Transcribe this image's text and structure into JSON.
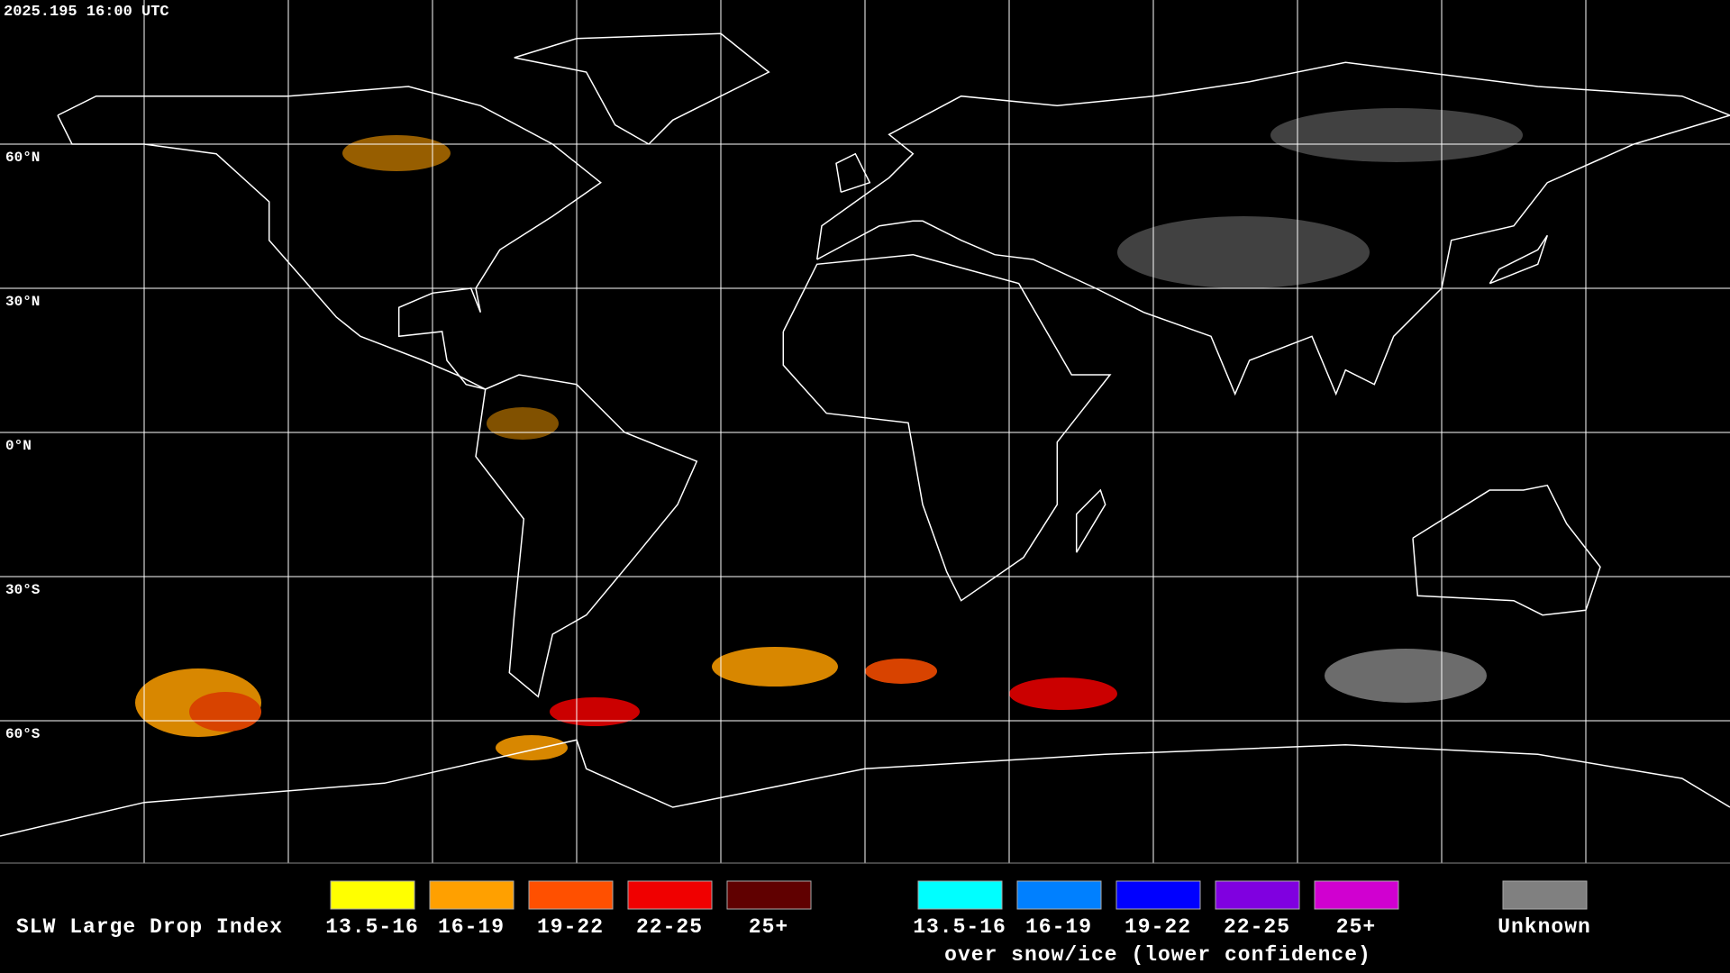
{
  "header": {
    "timestamp": "2025.195 16:00 UTC"
  },
  "map": {
    "lat_labels": [
      "60°N",
      "30°N",
      "0°N",
      "30°S",
      "60°S"
    ]
  },
  "legend": {
    "title": "SLW Large Drop Index",
    "items": [
      {
        "label": "13.5-16",
        "color": "#ffff00"
      },
      {
        "label": "16-19",
        "color": "#ffa000"
      },
      {
        "label": "19-22",
        "color": "#ff5000"
      },
      {
        "label": "22-25",
        "color": "#f00000"
      },
      {
        "label": "25+",
        "color": "#600000"
      }
    ],
    "snow_items": [
      {
        "label": "13.5-16",
        "color": "#00ffff"
      },
      {
        "label": "16-19",
        "color": "#0080ff"
      },
      {
        "label": "19-22",
        "color": "#0000ff"
      },
      {
        "label": "22-25",
        "color": "#8000e0"
      },
      {
        "label": "25+",
        "color": "#d000d0"
      }
    ],
    "snow_caption": "over snow/ice (lower confidence)",
    "unknown": {
      "label": "Unknown",
      "color": "#808080"
    }
  }
}
